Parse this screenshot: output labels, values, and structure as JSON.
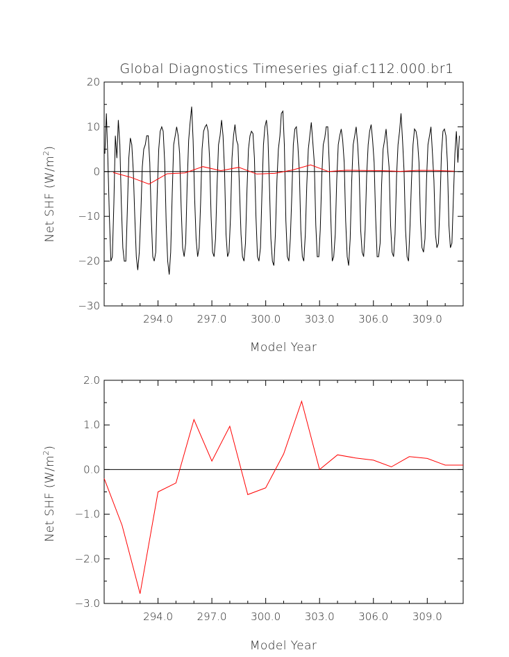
{
  "colors": {
    "monthly": "#000000",
    "annual": "#ff0000",
    "zero_line": "#000000"
  },
  "chart_data": [
    {
      "type": "line",
      "title": "Global Diagnostics Timeseries giaf.c112.000.br1",
      "xlabel": "Model Year",
      "ylabel_main": "Net SHF (W/m",
      "ylabel_sup": "2",
      "ylabel_end": ")",
      "xlim": [
        291.0,
        311.0
      ],
      "ylim": [
        -30,
        20
      ],
      "xticks": [
        294.0,
        297.0,
        300.0,
        303.0,
        306.0,
        309.0
      ],
      "xtick_labels": [
        "294.0",
        "297.0",
        "300.0",
        "303.0",
        "306.0",
        "309.0"
      ],
      "yticks": [
        -30,
        -20,
        -10,
        0,
        10,
        20
      ],
      "ytick_labels": [
        "−30",
        "−20",
        "−10",
        "0",
        "10",
        "20"
      ],
      "grid": false,
      "zero_line": true,
      "series": [
        {
          "kind": "monthly",
          "color": "#000000",
          "x_start": 291.04,
          "x_step": 0.08333,
          "values": [
            4.0,
            13.0,
            3.0,
            -10.0,
            -20.0,
            -19.0,
            -7.0,
            8.0,
            3.0,
            11.5,
            6.0,
            -7.0,
            -17.0,
            -20.0,
            -20.0,
            -9.0,
            3.0,
            7.5,
            6.0,
            0.0,
            -10.0,
            -19.0,
            -22.0,
            -18.0,
            -10.0,
            1.0,
            5.0,
            6.0,
            8.0,
            8.0,
            2.0,
            -10.0,
            -19.0,
            -20.0,
            -18.0,
            -5.0,
            5.0,
            9.0,
            10.0,
            9.0,
            2.0,
            -12.0,
            -20.0,
            -23.0,
            -18.0,
            -5.0,
            6.0,
            8.0,
            10.0,
            8.0,
            4.0,
            -8.0,
            -17.0,
            -19.0,
            -16.0,
            -3.0,
            7.0,
            11.0,
            14.5,
            7.0,
            -6.0,
            -15.0,
            -19.0,
            -17.0,
            -7.0,
            5.0,
            9.0,
            10.0,
            10.5,
            9.0,
            3.0,
            -10.0,
            -18.0,
            -19.0,
            -15.0,
            -3.0,
            6.0,
            8.0,
            11.5,
            8.0,
            0.0,
            -14.0,
            -19.0,
            -18.0,
            -10.0,
            3.0,
            8.0,
            10.5,
            7.0,
            6.0,
            -4.0,
            -14.0,
            -19.0,
            -20.0,
            -16.0,
            -4.0,
            5.0,
            8.0,
            9.0,
            8.5,
            3.0,
            -10.0,
            -19.0,
            -20.0,
            -17.0,
            -5.0,
            6.0,
            10.0,
            11.5,
            8.0,
            -3.0,
            -15.0,
            -20.0,
            -21.0,
            -14.0,
            -2.0,
            5.0,
            8.0,
            13.0,
            13.5,
            6.0,
            -11.0,
            -19.0,
            -20.0,
            -15.0,
            -5.0,
            6.0,
            9.5,
            10.0,
            6.0,
            0.0,
            -13.0,
            -19.0,
            -20.0,
            -14.0,
            -3.0,
            5.0,
            8.0,
            11.0,
            6.5,
            2.0,
            -12.0,
            -19.0,
            -19.0,
            -13.0,
            -1.0,
            6.0,
            7.5,
            10.0,
            10.0,
            2.0,
            -10.0,
            -20.0,
            -19.0,
            -14.0,
            -2.0,
            6.0,
            8.0,
            9.5,
            7.0,
            2.0,
            -11.0,
            -19.0,
            -21.0,
            -15.0,
            -2.0,
            6.0,
            8.0,
            10.0,
            6.0,
            0.0,
            -13.0,
            -18.0,
            -19.0,
            -13.0,
            -1.0,
            6.0,
            9.0,
            10.5,
            7.0,
            2.0,
            -10.0,
            -19.0,
            -19.0,
            -16.0,
            -3.0,
            5.0,
            7.0,
            9.5,
            5.0,
            1.0,
            -12.0,
            -18.0,
            -19.0,
            -14.0,
            -1.0,
            6.0,
            9.0,
            13.0,
            7.0,
            0.0,
            -13.0,
            -19.0,
            -20.0,
            -12.0,
            -2.0,
            6.0,
            9.5,
            9.0,
            7.0,
            2.0,
            -11.0,
            -17.0,
            -18.0,
            -15.0,
            -2.0,
            6.0,
            8.0,
            10.0,
            4.0,
            -2.0,
            -14.0,
            -17.0,
            -16.0,
            -8.0,
            4.0,
            9.0,
            9.5,
            8.0,
            2.0,
            -12.0,
            -17.0,
            -16.0,
            -6.0,
            4.0,
            9.0,
            2.0,
            8.0
          ]
        },
        {
          "kind": "annual",
          "color": "#ff0000",
          "x": [
            291.5,
            292.5,
            293.5,
            294.5,
            295.5,
            296.5,
            297.5,
            298.5,
            299.5,
            300.5,
            301.5,
            302.5,
            303.5,
            304.5,
            305.5,
            306.5,
            307.5,
            308.5,
            309.5,
            310.5
          ],
          "y": [
            -0.2,
            -1.3,
            -2.8,
            -0.5,
            -0.3,
            1.1,
            0.2,
            0.95,
            -0.55,
            -0.4,
            0.35,
            1.5,
            0.0,
            0.3,
            0.25,
            0.2,
            0.05,
            0.28,
            0.25,
            0.1
          ]
        }
      ]
    },
    {
      "type": "line",
      "title": "",
      "xlabel": "Model Year",
      "ylabel_main": "Net SHF (W/m",
      "ylabel_sup": "2",
      "ylabel_end": ")",
      "xlim": [
        291.0,
        311.0
      ],
      "ylim": [
        -3.0,
        2.0
      ],
      "xticks": [
        294.0,
        297.0,
        300.0,
        303.0,
        306.0,
        309.0
      ],
      "xtick_labels": [
        "294.0",
        "297.0",
        "300.0",
        "303.0",
        "306.0",
        "309.0"
      ],
      "yticks": [
        -3.0,
        -2.0,
        -1.0,
        0.0,
        1.0,
        2.0
      ],
      "ytick_labels": [
        "−3.0",
        "−2.0",
        "−1.0",
        "0.0",
        "1.0",
        "2.0"
      ],
      "grid": false,
      "zero_line": true,
      "series": [
        {
          "kind": "annual",
          "color": "#ff0000",
          "x": [
            291.0,
            292.0,
            293.0,
            294.0,
            295.0,
            296.0,
            297.0,
            298.0,
            299.0,
            300.0,
            301.0,
            302.0,
            303.0,
            304.0,
            305.0,
            306.0,
            307.0,
            308.0,
            309.0,
            310.0,
            311.0
          ],
          "y": [
            -0.2,
            -1.25,
            -2.78,
            -0.5,
            -0.3,
            1.12,
            0.19,
            0.97,
            -0.56,
            -0.41,
            0.35,
            1.53,
            0.0,
            0.33,
            0.26,
            0.21,
            0.06,
            0.29,
            0.25,
            0.1,
            0.1
          ]
        }
      ]
    }
  ]
}
